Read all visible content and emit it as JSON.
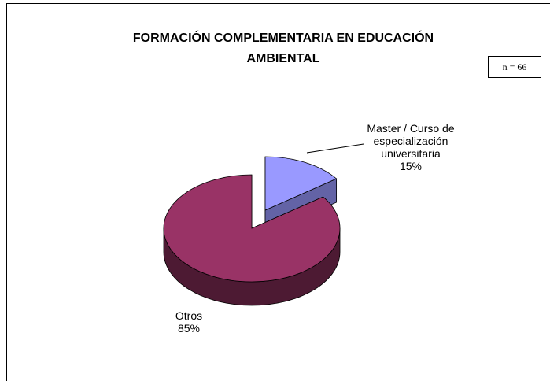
{
  "chart_data": {
    "type": "pie",
    "title": "FORMACIÓN COMPLEMENTARIA EN EDUCACIÓN AMBIENTAL",
    "annotation": "n = 66",
    "categories": [
      "Master / Curso de especialización universitaria",
      "Otros"
    ],
    "values": [
      15,
      85
    ],
    "value_labels": [
      "15%",
      "85%"
    ],
    "colors": [
      "#9999ff",
      "#993366"
    ],
    "exploded": [
      true,
      false
    ]
  }
}
